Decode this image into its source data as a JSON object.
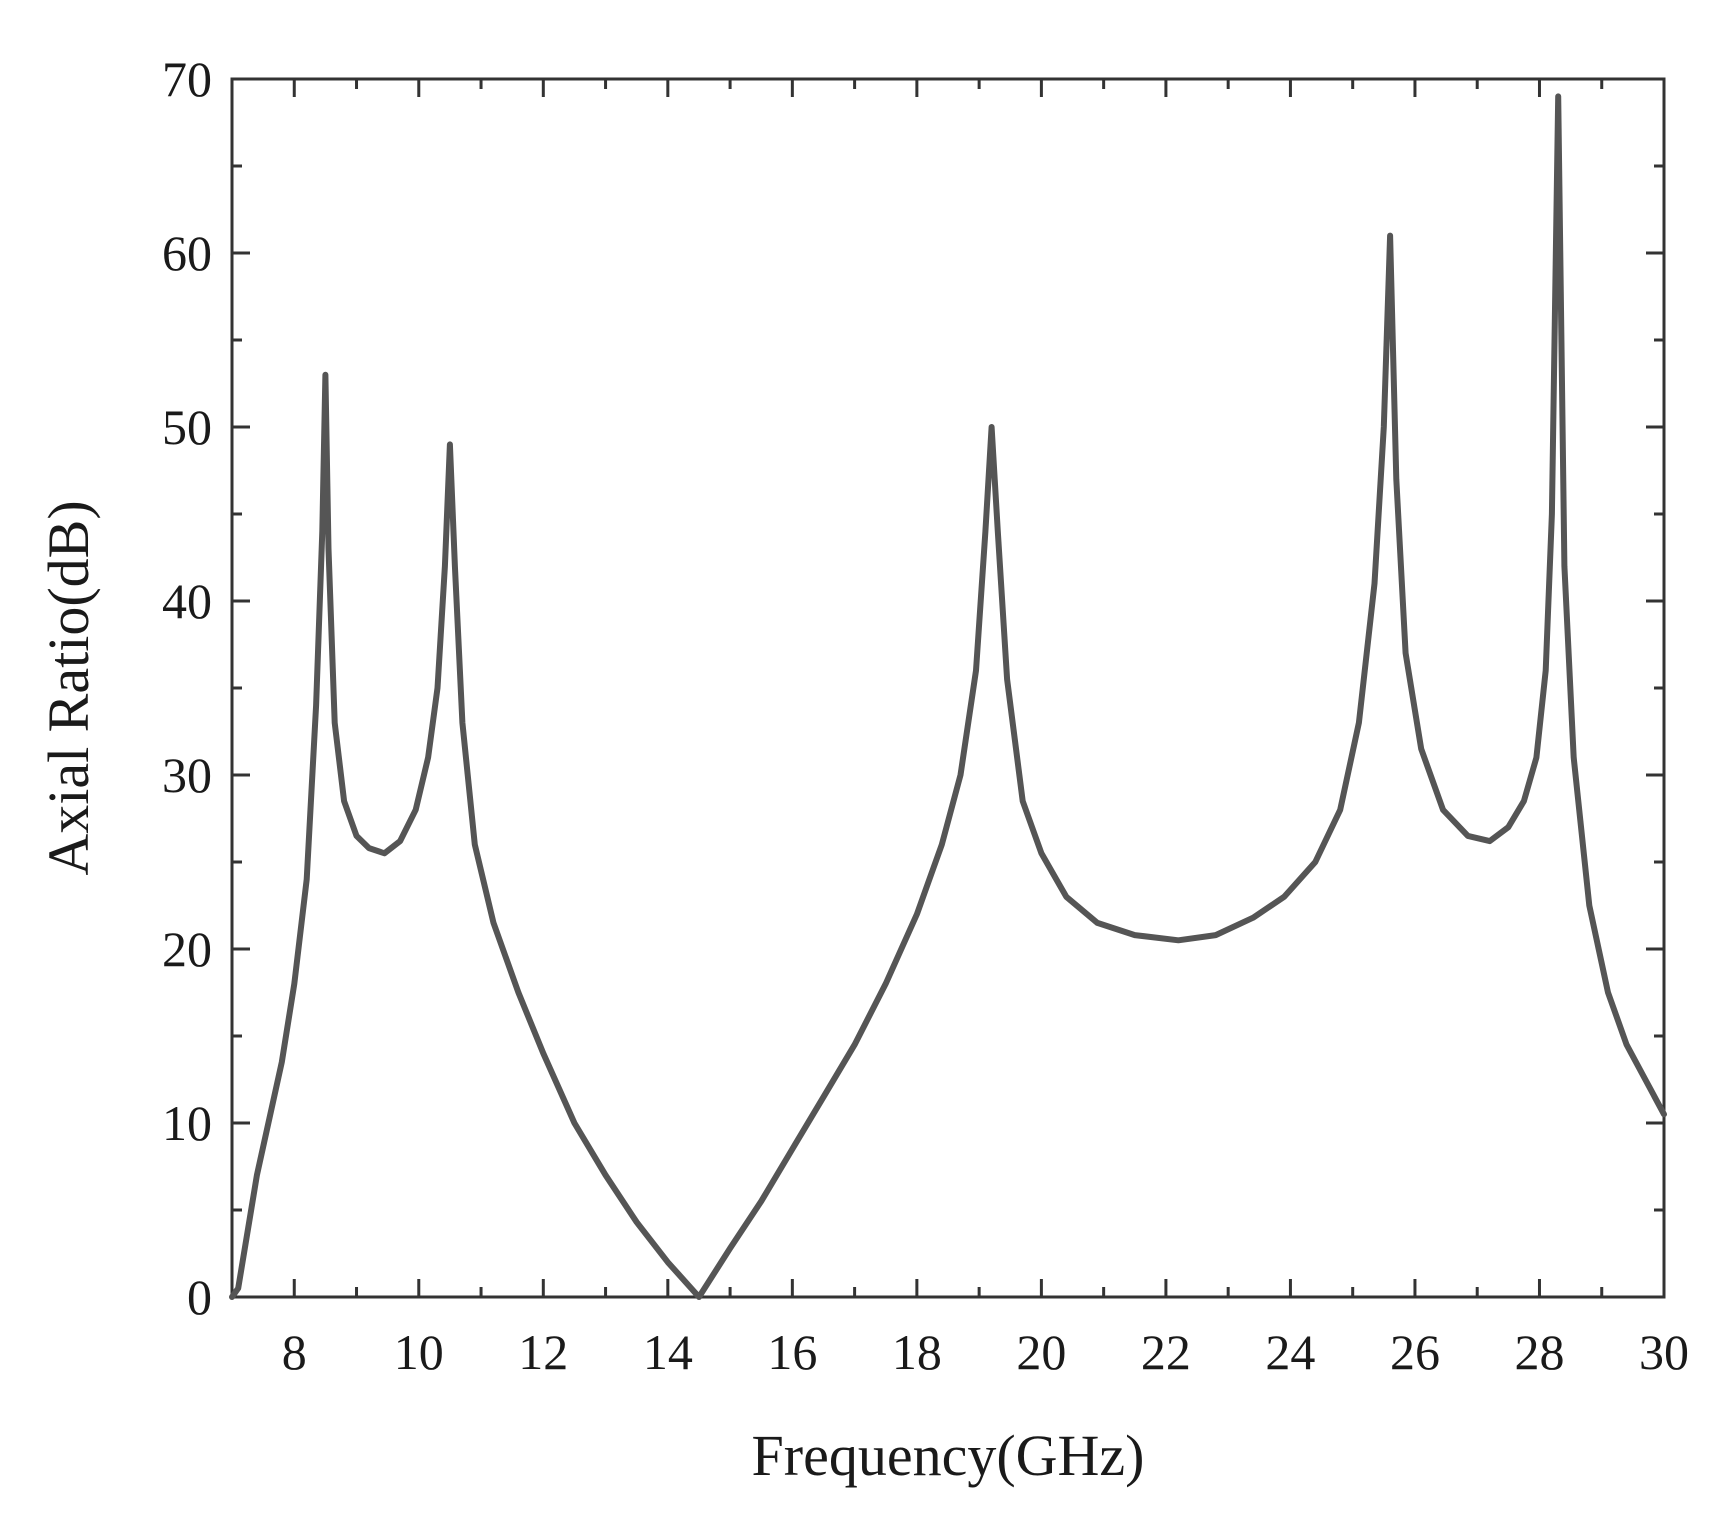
{
  "chart_data": {
    "type": "line",
    "title": "",
    "xlabel": "Frequency(GHz)",
    "ylabel": "Axial Ratio(dB)",
    "xlim": [
      7,
      30
    ],
    "ylim": [
      0,
      70
    ],
    "xticks": [
      8,
      10,
      12,
      14,
      16,
      18,
      20,
      22,
      24,
      26,
      28,
      30
    ],
    "yticks": [
      0,
      10,
      20,
      30,
      40,
      50,
      60,
      70
    ],
    "grid": false,
    "legend": "none",
    "line_color": "#555555",
    "series": [
      {
        "x": [
          7.0,
          7.1,
          7.4,
          7.8,
          8.0,
          8.2,
          8.35,
          8.45,
          8.5,
          8.55,
          8.65,
          8.8,
          9.0,
          9.2,
          9.45,
          9.7,
          9.95,
          10.15,
          10.3,
          10.42,
          10.5,
          10.58,
          10.7,
          10.9,
          11.2,
          11.6,
          12.0,
          12.5,
          13.0,
          13.5,
          14.0,
          14.5,
          15.0,
          15.5,
          16.0,
          16.5,
          17.0,
          17.5,
          18.0,
          18.4,
          18.7,
          18.95,
          19.1,
          19.2,
          19.3,
          19.45,
          19.7,
          20.0,
          20.4,
          20.9,
          21.5,
          22.2,
          22.8,
          23.4,
          23.9,
          24.4,
          24.8,
          25.1,
          25.35,
          25.5,
          25.6,
          25.7,
          25.85,
          26.1,
          26.45,
          26.85,
          27.2,
          27.5,
          27.75,
          27.95,
          28.1,
          28.2,
          28.3,
          28.4,
          28.55,
          28.8,
          29.1,
          29.4,
          29.7,
          30.0
        ],
        "y": [
          0,
          0.5,
          7,
          13.5,
          18,
          24,
          34,
          44,
          53,
          43,
          33,
          28.5,
          26.5,
          25.8,
          25.5,
          26.2,
          28,
          31,
          35,
          42,
          49,
          42,
          33,
          26,
          21.5,
          17.5,
          14,
          10,
          7,
          4.3,
          2,
          0,
          2.8,
          5.5,
          8.5,
          11.5,
          14.5,
          18,
          22,
          26,
          30,
          36,
          44,
          50,
          44,
          35.5,
          28.5,
          25.5,
          23,
          21.5,
          20.8,
          20.5,
          20.8,
          21.8,
          23,
          25,
          28,
          33,
          41,
          50,
          61,
          47,
          37,
          31.5,
          28,
          26.5,
          26.2,
          27,
          28.5,
          31,
          36,
          45,
          69,
          42,
          31,
          22.5,
          17.5,
          14.5,
          12.5,
          10.5
        ]
      }
    ]
  }
}
